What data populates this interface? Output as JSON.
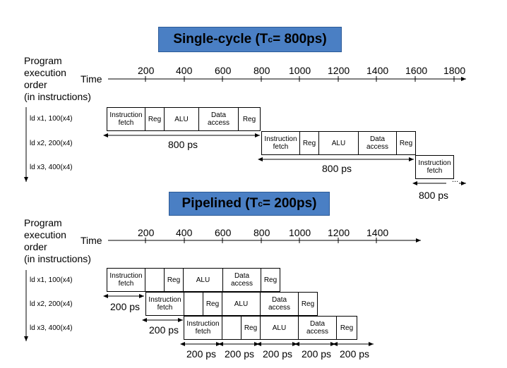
{
  "single": {
    "title_main": "Single-cycle (T",
    "title_sub": "c",
    "title_end": "= 800ps)",
    "y_label": [
      "Program",
      "execution",
      "order",
      "(in instructions)"
    ],
    "time_label": "Time",
    "ticks": [
      "200",
      "400",
      "600",
      "800",
      "1000",
      "1200",
      "1400",
      "1600",
      "1800"
    ],
    "instructions": [
      "ld x1, 100(x4)",
      "ld x2, 200(x4)",
      "ld x3, 400(x4)"
    ],
    "stages": {
      "fetch": "Instruction fetch",
      "reg": "Reg",
      "alu": "ALU",
      "data": "Data access",
      "reg2": "Reg"
    },
    "durations": [
      "800 ps",
      "800 ps",
      "800 ps"
    ],
    "ellipsis": "..."
  },
  "pipe": {
    "title_main": "Pipelined (T",
    "title_sub": "c",
    "title_end": "= 200ps)",
    "y_label": [
      "Program",
      "execution",
      "order",
      "(in instructions)"
    ],
    "time_label": "Time",
    "ticks": [
      "200",
      "400",
      "600",
      "800",
      "1000",
      "1200",
      "1400"
    ],
    "instructions": [
      "ld x1, 100(x4)",
      "ld x2, 200(x4)",
      "ld x3, 400(x4)"
    ],
    "stages": {
      "fetch": "Instruction fetch",
      "reg": "Reg",
      "alu": "ALU",
      "data": "Data access",
      "reg2": "Reg"
    },
    "durations": [
      "200 ps",
      "200 ps",
      "200 ps",
      "200 ps",
      "200 ps",
      "200 ps",
      "200 ps"
    ]
  }
}
